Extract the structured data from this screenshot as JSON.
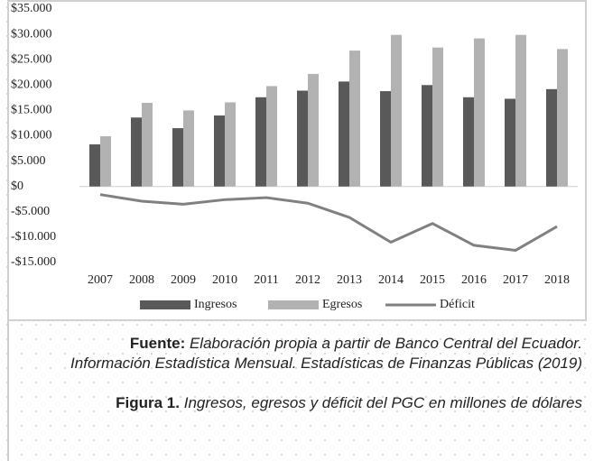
{
  "chart_data": {
    "type": "bar_line",
    "categories": [
      "2007",
      "2008",
      "2009",
      "2010",
      "2011",
      "2012",
      "2013",
      "2014",
      "2015",
      "2016",
      "2017",
      "2018"
    ],
    "series": [
      {
        "name": "Ingresos",
        "type": "bar",
        "color": "#595959",
        "values": [
          8300,
          13600,
          11500,
          14000,
          17600,
          18900,
          20700,
          18800,
          20000,
          17600,
          17300,
          19200
        ]
      },
      {
        "name": "Egresos",
        "type": "bar",
        "color": "#b2b2b2",
        "values": [
          9900,
          16500,
          15000,
          16600,
          19800,
          22200,
          26800,
          29900,
          27400,
          29200,
          29900,
          27100
        ]
      },
      {
        "name": "Déficit",
        "type": "line",
        "color": "#808080",
        "values": [
          -1600,
          -2900,
          -3500,
          -2600,
          -2200,
          -3300,
          -6100,
          -11000,
          -7300,
          -11600,
          -12600,
          -7900
        ]
      }
    ],
    "ylim": [
      -15000,
      35000
    ],
    "yticks": [
      {
        "value": -15000,
        "label": "-$15.000"
      },
      {
        "value": -10000,
        "label": "-$10.000"
      },
      {
        "value": -5000,
        "label": "-$5.000"
      },
      {
        "value": 0,
        "label": "$0"
      },
      {
        "value": 5000,
        "label": "$5.000"
      },
      {
        "value": 10000,
        "label": "$10.000"
      },
      {
        "value": 15000,
        "label": "$15.000"
      },
      {
        "value": 20000,
        "label": "$20.000"
      },
      {
        "value": 25000,
        "label": "$25.000"
      },
      {
        "value": 30000,
        "label": "$30.000"
      },
      {
        "value": 35000,
        "label": "$35.000"
      }
    ],
    "legend": "bottom"
  },
  "caption": {
    "source_label": "Fuente:",
    "source_text": "Elaboración propia a partir de Banco Central del Ecuador. Información Estadística Mensual. Estadísticas de Finanzas Públicas (2019)",
    "figure_label": "Figura 1.",
    "figure_text": "Ingresos, egresos y déficit del PGC en millones de dólares"
  }
}
